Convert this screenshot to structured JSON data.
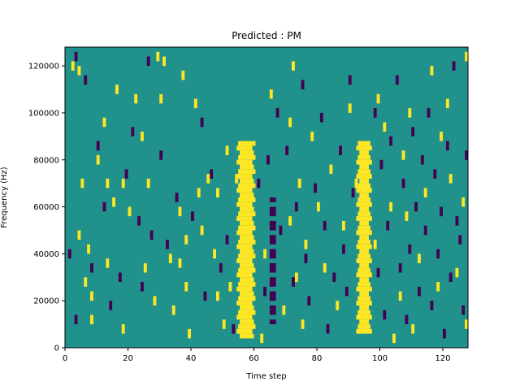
{
  "chart_data": {
    "type": "heatmap",
    "title": "Predicted : PM",
    "xlabel": "Time step",
    "ylabel": "Frequency (Hz)",
    "xlim": [
      0,
      128
    ],
    "ylim": [
      0,
      128000
    ],
    "x_ticks": [
      0,
      20,
      40,
      60,
      80,
      100,
      120
    ],
    "x_tick_labels": [
      "0",
      "20",
      "40",
      "60",
      "80",
      "100",
      "120"
    ],
    "y_ticks": [
      0,
      20000,
      40000,
      60000,
      80000,
      100000,
      120000
    ],
    "y_tick_labels": [
      "0",
      "20000",
      "40000",
      "60000",
      "80000",
      "100000",
      "120000"
    ],
    "grid": false,
    "colors": {
      "background": "#21918c",
      "high": "#fde725",
      "low": "#440154"
    },
    "value_levels": {
      "low": 0,
      "background": 0.5,
      "high": 1
    },
    "n_time_steps": 128,
    "n_frequency_bins": 64,
    "background_value": 0.5,
    "high_bands": [
      {
        "t_start": 55,
        "t_end": 60,
        "f_start": 4000,
        "f_end": 88000
      },
      {
        "t_start": 93,
        "t_end": 97,
        "f_start": 6000,
        "f_end": 88000
      }
    ],
    "low_bands": [
      {
        "t_start": 65,
        "t_end": 67,
        "f_start": 10000,
        "f_end": 64000
      }
    ],
    "high_cells": [
      [
        2,
        120000
      ],
      [
        4,
        118000
      ],
      [
        4,
        48000
      ],
      [
        5,
        70000
      ],
      [
        6,
        28000
      ],
      [
        7,
        42000
      ],
      [
        8,
        22000
      ],
      [
        8,
        12000
      ],
      [
        10,
        80000
      ],
      [
        12,
        96000
      ],
      [
        13,
        70000
      ],
      [
        13,
        36000
      ],
      [
        15,
        62000
      ],
      [
        16,
        110000
      ],
      [
        18,
        70000
      ],
      [
        18,
        8000
      ],
      [
        20,
        58000
      ],
      [
        22,
        106000
      ],
      [
        24,
        90000
      ],
      [
        25,
        34000
      ],
      [
        26,
        70000
      ],
      [
        28,
        20000
      ],
      [
        29,
        124000
      ],
      [
        30,
        106000
      ],
      [
        31,
        122000
      ],
      [
        33,
        38000
      ],
      [
        34,
        16000
      ],
      [
        36,
        58000
      ],
      [
        36,
        36000
      ],
      [
        37,
        116000
      ],
      [
        38,
        46000
      ],
      [
        38,
        26000
      ],
      [
        39,
        6000
      ],
      [
        41,
        104000
      ],
      [
        42,
        66000
      ],
      [
        43,
        50000
      ],
      [
        45,
        72000
      ],
      [
        47,
        40000
      ],
      [
        48,
        22000
      ],
      [
        48,
        66000
      ],
      [
        50,
        10000
      ],
      [
        51,
        84000
      ],
      [
        52,
        26000
      ],
      [
        54,
        72000
      ],
      [
        62,
        4000
      ],
      [
        63,
        40000
      ],
      [
        65,
        108000
      ],
      [
        69,
        16000
      ],
      [
        71,
        96000
      ],
      [
        71,
        54000
      ],
      [
        72,
        120000
      ],
      [
        73,
        30000
      ],
      [
        74,
        70000
      ],
      [
        75,
        10000
      ],
      [
        76,
        44000
      ],
      [
        78,
        90000
      ],
      [
        80,
        60000
      ],
      [
        82,
        34000
      ],
      [
        84,
        76000
      ],
      [
        86,
        18000
      ],
      [
        88,
        52000
      ],
      [
        90,
        102000
      ],
      [
        92,
        70000
      ],
      [
        98,
        44000
      ],
      [
        99,
        106000
      ],
      [
        101,
        94000
      ],
      [
        103,
        60000
      ],
      [
        104,
        4000
      ],
      [
        106,
        22000
      ],
      [
        107,
        82000
      ],
      [
        108,
        56000
      ],
      [
        109,
        100000
      ],
      [
        110,
        8000
      ],
      [
        112,
        38000
      ],
      [
        114,
        66000
      ],
      [
        116,
        118000
      ],
      [
        118,
        26000
      ],
      [
        119,
        90000
      ],
      [
        121,
        104000
      ],
      [
        122,
        72000
      ],
      [
        124,
        32000
      ],
      [
        126,
        62000
      ],
      [
        127,
        10000
      ],
      [
        127,
        124000
      ]
    ],
    "low_cells": [
      [
        1,
        40000
      ],
      [
        3,
        124000
      ],
      [
        3,
        12000
      ],
      [
        6,
        114000
      ],
      [
        8,
        34000
      ],
      [
        10,
        86000
      ],
      [
        12,
        60000
      ],
      [
        14,
        18000
      ],
      [
        17,
        30000
      ],
      [
        19,
        74000
      ],
      [
        21,
        92000
      ],
      [
        23,
        54000
      ],
      [
        24,
        26000
      ],
      [
        26,
        122000
      ],
      [
        27,
        48000
      ],
      [
        30,
        82000
      ],
      [
        32,
        44000
      ],
      [
        35,
        64000
      ],
      [
        40,
        56000
      ],
      [
        43,
        96000
      ],
      [
        44,
        22000
      ],
      [
        46,
        74000
      ],
      [
        49,
        34000
      ],
      [
        51,
        46000
      ],
      [
        53,
        8000
      ],
      [
        61,
        70000
      ],
      [
        63,
        24000
      ],
      [
        64,
        80000
      ],
      [
        67,
        100000
      ],
      [
        68,
        50000
      ],
      [
        70,
        84000
      ],
      [
        72,
        28000
      ],
      [
        73,
        60000
      ],
      [
        75,
        112000
      ],
      [
        76,
        38000
      ],
      [
        77,
        20000
      ],
      [
        79,
        68000
      ],
      [
        81,
        98000
      ],
      [
        82,
        52000
      ],
      [
        83,
        8000
      ],
      [
        85,
        30000
      ],
      [
        87,
        84000
      ],
      [
        88,
        42000
      ],
      [
        89,
        24000
      ],
      [
        90,
        114000
      ],
      [
        91,
        66000
      ],
      [
        98,
        100000
      ],
      [
        99,
        32000
      ],
      [
        100,
        78000
      ],
      [
        101,
        14000
      ],
      [
        102,
        52000
      ],
      [
        103,
        88000
      ],
      [
        105,
        114000
      ],
      [
        106,
        34000
      ],
      [
        107,
        70000
      ],
      [
        108,
        12000
      ],
      [
        109,
        42000
      ],
      [
        110,
        92000
      ],
      [
        111,
        60000
      ],
      [
        112,
        24000
      ],
      [
        113,
        80000
      ],
      [
        114,
        50000
      ],
      [
        115,
        100000
      ],
      [
        116,
        18000
      ],
      [
        117,
        74000
      ],
      [
        118,
        40000
      ],
      [
        119,
        58000
      ],
      [
        120,
        6000
      ],
      [
        121,
        86000
      ],
      [
        122,
        30000
      ],
      [
        123,
        120000
      ],
      [
        124,
        54000
      ],
      [
        125,
        46000
      ],
      [
        126,
        16000
      ],
      [
        127,
        82000
      ]
    ]
  }
}
